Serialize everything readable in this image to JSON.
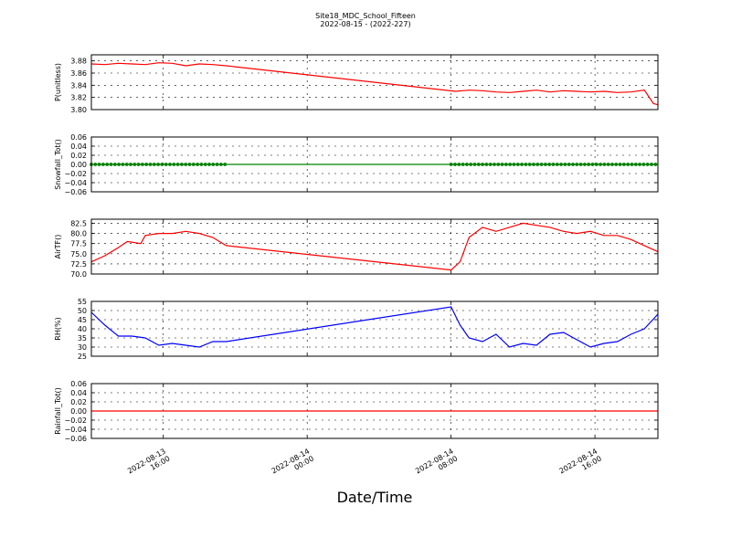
{
  "title": "Site18_MDC_School_Fifteen",
  "subtitle": "2022-08-15 - (2022-227)",
  "xlabel": "Date/Time",
  "x_ticks": [
    {
      "t": "2022-08-13T16:00",
      "lines": [
        "2022-08-13",
        "16:00"
      ]
    },
    {
      "t": "2022-08-14T00:00",
      "lines": [
        "2022-08-14",
        "00:00"
      ]
    },
    {
      "t": "2022-08-14T08:00",
      "lines": [
        "2022-08-14",
        "08:00"
      ]
    },
    {
      "t": "2022-08-14T16:00",
      "lines": [
        "2022-08-14",
        "16:00"
      ]
    }
  ],
  "chart_data": [
    {
      "type": "line",
      "ylabel": "P(unitless)",
      "ylim": [
        3.8,
        3.89
      ],
      "yticks": [
        "3.80",
        "3.82",
        "3.84",
        "3.86",
        "3.88"
      ],
      "color": "#ff0000",
      "grid": true,
      "x": [
        "2022-08-13T12:00",
        "2022-08-13T12:45",
        "2022-08-13T13:30",
        "2022-08-13T14:15",
        "2022-08-13T15:00",
        "2022-08-13T15:45",
        "2022-08-13T16:30",
        "2022-08-13T17:15",
        "2022-08-13T18:00",
        "2022-08-13T18:45",
        "2022-08-13T19:30",
        "2022-08-14T08:15",
        "2022-08-14T09:00",
        "2022-08-14T09:45",
        "2022-08-14T10:30",
        "2022-08-14T11:15",
        "2022-08-14T12:00",
        "2022-08-14T12:45",
        "2022-08-14T13:30",
        "2022-08-14T14:15",
        "2022-08-14T15:00",
        "2022-08-14T15:45",
        "2022-08-14T16:30",
        "2022-08-14T17:15",
        "2022-08-14T18:00",
        "2022-08-14T18:45",
        "2022-08-14T19:15",
        "2022-08-14T19:30"
      ],
      "y": [
        3.875,
        3.874,
        3.876,
        3.875,
        3.874,
        3.877,
        3.876,
        3.872,
        3.875,
        3.874,
        3.872,
        3.83,
        3.832,
        3.831,
        3.829,
        3.828,
        3.83,
        3.832,
        3.829,
        3.831,
        3.83,
        3.829,
        3.83,
        3.828,
        3.829,
        3.832,
        3.81,
        3.808
      ]
    },
    {
      "type": "line",
      "ylabel": "Snowfall_Tot()",
      "ylim": [
        -0.06,
        0.06
      ],
      "yticks": [
        "−0.06",
        "−0.04",
        "−0.02",
        "0.00",
        "0.02",
        "0.04",
        "0.06"
      ],
      "color": "#008000",
      "grid": true,
      "markers": true,
      "x": [
        "2022-08-13T12:00",
        "2022-08-13T19:30",
        "2022-08-14T08:00",
        "2022-08-14T19:30"
      ],
      "y": [
        0.0,
        0.0,
        0.0,
        0.0
      ]
    },
    {
      "type": "line",
      "ylabel": "AirTF()",
      "ylim": [
        70.0,
        83.5
      ],
      "yticks": [
        "70.0",
        "72.5",
        "75.0",
        "77.5",
        "80.0",
        "82.5"
      ],
      "color": "#ff0000",
      "grid": true,
      "x": [
        "2022-08-13T12:00",
        "2022-08-13T12:45",
        "2022-08-13T13:30",
        "2022-08-13T14:00",
        "2022-08-13T14:45",
        "2022-08-13T15:00",
        "2022-08-13T15:45",
        "2022-08-13T16:30",
        "2022-08-13T17:15",
        "2022-08-13T18:00",
        "2022-08-13T18:45",
        "2022-08-13T19:30",
        "2022-08-14T08:00",
        "2022-08-14T08:30",
        "2022-08-14T09:00",
        "2022-08-14T09:45",
        "2022-08-14T10:30",
        "2022-08-14T11:15",
        "2022-08-14T12:00",
        "2022-08-14T12:45",
        "2022-08-14T13:30",
        "2022-08-14T14:15",
        "2022-08-14T15:00",
        "2022-08-14T15:45",
        "2022-08-14T16:30",
        "2022-08-14T17:15",
        "2022-08-14T18:00",
        "2022-08-14T18:45",
        "2022-08-14T19:30"
      ],
      "y": [
        73.0,
        74.5,
        76.5,
        78.0,
        77.5,
        79.5,
        80.0,
        80.0,
        80.5,
        80.0,
        79.0,
        77.0,
        71.0,
        73.0,
        79.0,
        81.5,
        80.5,
        81.5,
        82.5,
        82.0,
        81.5,
        80.5,
        80.0,
        80.5,
        79.5,
        79.5,
        78.5,
        77.0,
        75.5
      ]
    },
    {
      "type": "line",
      "ylabel": "RH(%)",
      "ylim": [
        25,
        55
      ],
      "yticks": [
        "25",
        "30",
        "35",
        "40",
        "45",
        "50",
        "55"
      ],
      "color": "#0000ff",
      "grid": true,
      "x": [
        "2022-08-13T12:00",
        "2022-08-13T12:45",
        "2022-08-13T13:30",
        "2022-08-13T14:15",
        "2022-08-13T15:00",
        "2022-08-13T15:45",
        "2022-08-13T16:30",
        "2022-08-13T17:15",
        "2022-08-13T18:00",
        "2022-08-13T18:45",
        "2022-08-13T19:30",
        "2022-08-14T08:00",
        "2022-08-14T08:30",
        "2022-08-14T09:00",
        "2022-08-14T09:45",
        "2022-08-14T10:30",
        "2022-08-14T11:15",
        "2022-08-14T12:00",
        "2022-08-14T12:45",
        "2022-08-14T13:30",
        "2022-08-14T14:15",
        "2022-08-14T15:00",
        "2022-08-14T15:45",
        "2022-08-14T16:30",
        "2022-08-14T17:15",
        "2022-08-14T18:00",
        "2022-08-14T18:45",
        "2022-08-14T19:30"
      ],
      "y": [
        49,
        42,
        36,
        36,
        35,
        31,
        32,
        31,
        30,
        33,
        33,
        52,
        42,
        35,
        33,
        37,
        30,
        32,
        31,
        37,
        38,
        34,
        30,
        32,
        33,
        37,
        40,
        48
      ]
    },
    {
      "type": "line",
      "ylabel": "Rainfall_Tot()",
      "ylim": [
        -0.06,
        0.06
      ],
      "yticks": [
        "−0.06",
        "−0.04",
        "−0.02",
        "0.00",
        "0.02",
        "0.04",
        "0.06"
      ],
      "color": "#ff0000",
      "grid": true,
      "x": [
        "2022-08-13T12:00",
        "2022-08-14T19:30"
      ],
      "y": [
        0.0,
        0.0
      ]
    }
  ]
}
